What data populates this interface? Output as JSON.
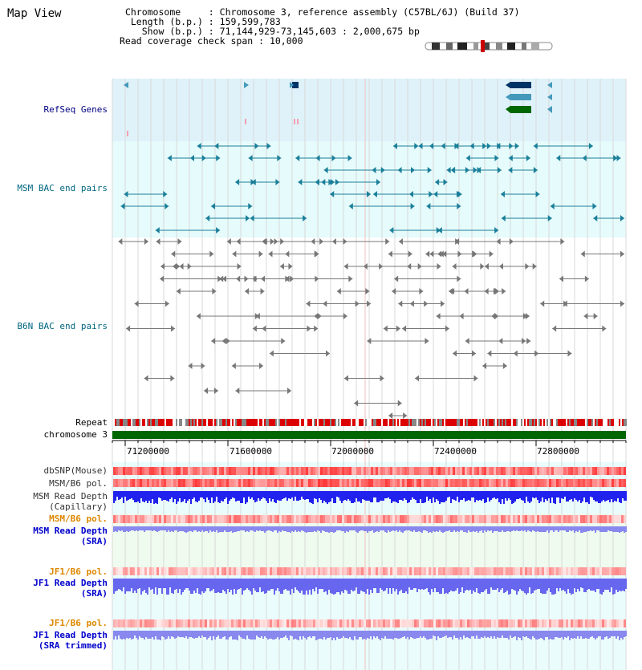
{
  "page": {
    "title": "Map View"
  },
  "info": {
    "chromosome_label": "Chromosome",
    "chromosome_value": "Chromosome 3, reference assembly (C57BL/6J) (Build 37)",
    "length_label": "Length (b.p.)",
    "length_value": "159,599,783",
    "show_label": "Show (b.p.)",
    "show_value": "71,144,929-73,145,603 : 2,000,675 bp",
    "coverage_label": "Read coverage check span",
    "coverage_value": "10,000"
  },
  "tracks": {
    "refseq": "RefSeq Genes",
    "msm_bac": "MSM BAC end pairs",
    "b6n_bac": "B6N BAC end pairs",
    "repeat": "Repeat",
    "chromosome": "chromosome 3",
    "dbsnp": "dbSNP(Mouse)",
    "msm_b6_pol": "MSM/B6 pol.",
    "msm_depth_cap_1": "MSM Read Depth",
    "msm_depth_cap_2": "(Capillary)",
    "msm_b6_pol_2": "MSM/B6 pol.",
    "msm_depth_sra_1": "MSM Read Depth",
    "msm_depth_sra_2": "(SRA)",
    "jf1_pol": "JF1/B6 pol.",
    "jf1_depth_1": "JF1 Read Depth",
    "jf1_depth_2": "(SRA)",
    "jf1_pol_2": "JF1/B6 pol.",
    "jf1_trim_1": "JF1 Read Depth",
    "jf1_trim_2": "(SRA trimmed)"
  },
  "axis": {
    "ticks": [
      "71200000",
      "71600000",
      "72000000",
      "72400000",
      "72800000"
    ]
  },
  "colors": {
    "refseq_bg": "#dff2fa",
    "msm_bg": "#e6fbfb",
    "depth_bg": "#eefbee",
    "navy_label": "#000080",
    "teal_label": "#006680",
    "orange_label": "#dd8800",
    "blue_label": "#0000cc",
    "chromosome_green": "#006600",
    "gene_navy": "#003366",
    "gene_teal": "#4499bb",
    "gene_green": "#006600"
  }
}
